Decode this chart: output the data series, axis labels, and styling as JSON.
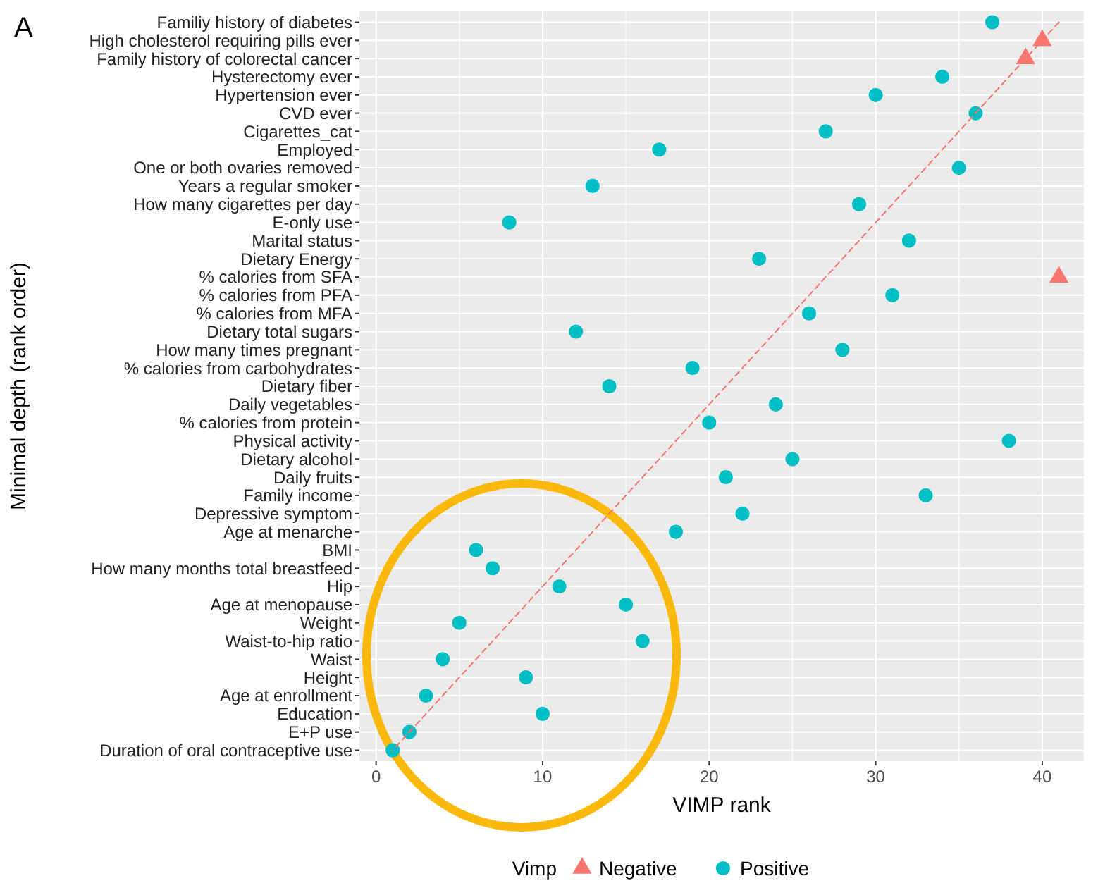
{
  "chart_data": {
    "type": "scatter",
    "orientation": "horizontal",
    "xlabel": "VIMP rank",
    "ylabel": "Minimal depth (rank order)",
    "legend_title": "Vimp",
    "annotations": [
      "A"
    ],
    "xlim": [
      -1,
      42.5
    ],
    "xticks": [
      0,
      10,
      20,
      30,
      40
    ],
    "categories": [
      "Familiy history of diabetes",
      "High cholesterol requiring pills ever",
      "Family history of colorectal cancer",
      "Hysterectomy ever",
      "Hypertension ever",
      "CVD ever",
      "Cigarettes_cat",
      "Employed",
      "One or both ovaries removed",
      "Years a regular smoker",
      "How many cigarettes per day",
      "E-only use",
      "Marital status",
      "Dietary Energy",
      "% calories from SFA",
      "% calories from PFA",
      "% calories from MFA",
      "Dietary total sugars",
      "How many times pregnant",
      "% calories from carbohydrates",
      "Dietary fiber",
      "Daily vegetables",
      "% calories from protein",
      "Physical activity",
      "Dietary alcohol",
      "Daily fruits",
      "Family income",
      "Depressive symptom",
      "Age at menarche",
      "BMI",
      "How many months total breastfeed",
      "Hip",
      "Age at menopause",
      "Weight",
      "Waist-to-hip ratio",
      "Waist",
      "Height",
      "Age at enrollment",
      "Education",
      "E+P use",
      "Duration of oral contraceptive use"
    ],
    "grid": true,
    "legend": "bottom",
    "series": [
      {
        "name": "Negative",
        "color": "#f8766d",
        "marker": "triangle",
        "values": [
          null,
          40,
          39,
          null,
          null,
          null,
          null,
          null,
          null,
          null,
          null,
          null,
          null,
          null,
          41,
          null,
          null,
          null,
          null,
          null,
          null,
          null,
          null,
          null,
          null,
          null,
          null,
          null,
          null,
          null,
          null,
          null,
          null,
          null,
          null,
          null,
          null,
          null,
          null,
          null,
          null
        ]
      },
      {
        "name": "Positive",
        "color": "#00bfc4",
        "marker": "circle",
        "values": [
          37,
          null,
          null,
          34,
          30,
          36,
          27,
          17,
          35,
          13,
          29,
          8,
          32,
          23,
          null,
          31,
          26,
          12,
          28,
          19,
          14,
          24,
          20,
          38,
          25,
          21,
          33,
          22,
          18,
          6,
          7,
          11,
          15,
          5,
          16,
          4,
          9,
          3,
          10,
          2,
          1
        ]
      },
      {
        "type": "line",
        "color": "#f8766d",
        "line_style": "dashed",
        "values": [
          41,
          40,
          39,
          38,
          37,
          36,
          35,
          34,
          33,
          32,
          31,
          30,
          29,
          28,
          27,
          26,
          25,
          24,
          23,
          22,
          21,
          20,
          19,
          18,
          17,
          16,
          15,
          14,
          13,
          12,
          11,
          10,
          9,
          8,
          7,
          6,
          5,
          4,
          3,
          2,
          1
        ]
      }
    ]
  }
}
